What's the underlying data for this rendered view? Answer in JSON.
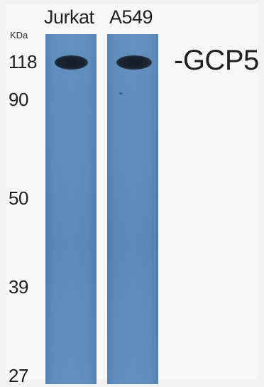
{
  "lanes": [
    {
      "label": "Jurkat"
    },
    {
      "label": "A549"
    }
  ],
  "mw_unit": "KDa",
  "mw_markers": [
    "118",
    "90",
    "50",
    "39",
    "27"
  ],
  "protein_label": "-GCP5",
  "colors": {
    "membrane": "#5d8cbd",
    "band": "#121c2a",
    "background": "#f2f2f2"
  }
}
